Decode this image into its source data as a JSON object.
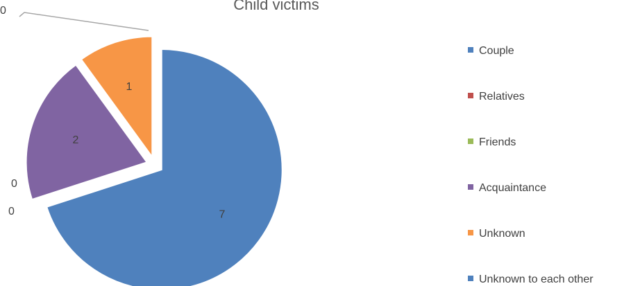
{
  "chart_data": {
    "type": "pie",
    "title": "Child victims",
    "categories": [
      "Couple",
      "Relatives",
      "Friends",
      "Acquaintance",
      "Unknown",
      "Unknown to each other"
    ],
    "values": [
      7,
      0,
      0,
      2,
      1,
      0
    ],
    "colors": [
      "#4f81bd",
      "#c0504d",
      "#9bbb59",
      "#8064a2",
      "#f79646",
      "#4f81bd"
    ],
    "exploded": true,
    "legend_position": "right",
    "data_labels": [
      "7",
      "0",
      "0",
      "2",
      "1",
      "0"
    ]
  }
}
